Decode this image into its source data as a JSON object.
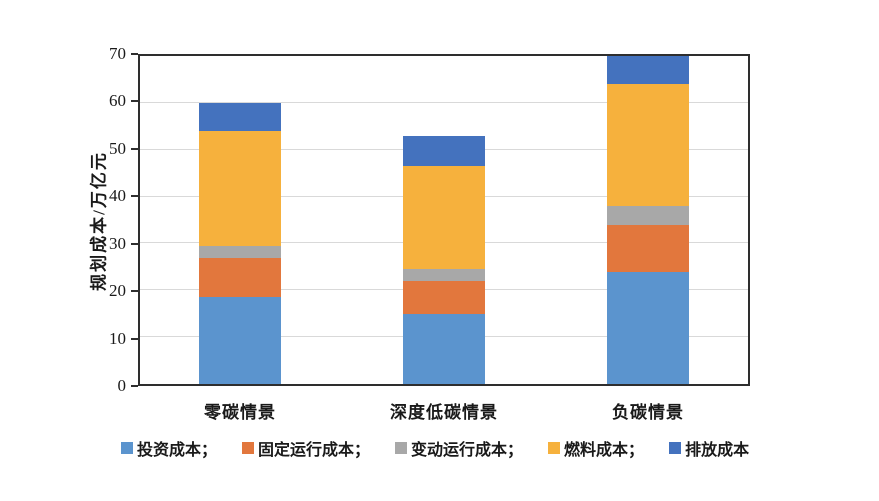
{
  "chart_data": {
    "type": "bar",
    "stacked": true,
    "title": "",
    "categories": [
      "零碳情景",
      "深度低碳情景",
      "负碳情景"
    ],
    "series": [
      {
        "name": "投资成本",
        "legend_label": "投资成本；",
        "color": "#5B94CE",
        "values": [
          18.5,
          15,
          24
        ]
      },
      {
        "name": "固定运行成本",
        "legend_label": "固定运行成本；",
        "color": "#E2773D",
        "values": [
          8.5,
          7,
          10
        ]
      },
      {
        "name": "变动运行成本",
        "legend_label": "变动运行成本；",
        "color": "#A8A8A8",
        "values": [
          2.5,
          2.5,
          4
        ]
      },
      {
        "name": "燃料成本",
        "legend_label": "燃料成本；",
        "color": "#F6B13D",
        "values": [
          24.5,
          22,
          26
        ]
      },
      {
        "name": "排放成本",
        "legend_label": "排放成本",
        "color": "#4472BE",
        "values": [
          6,
          6.5,
          6
        ]
      }
    ],
    "totals": [
      60,
      53,
      70
    ],
    "xlabel": "",
    "ylabel": "规划成本/万亿元",
    "ylim": [
      0,
      70
    ],
    "yticks": [
      0,
      10,
      20,
      30,
      40,
      50,
      60,
      70
    ],
    "grid": "horizontal",
    "legend_position": "bottom"
  },
  "style": {
    "axis_color": "#2e2e2e",
    "grid_color": "#d9d9d9",
    "text_color": "#1a1a1a",
    "background": "#ffffff"
  }
}
